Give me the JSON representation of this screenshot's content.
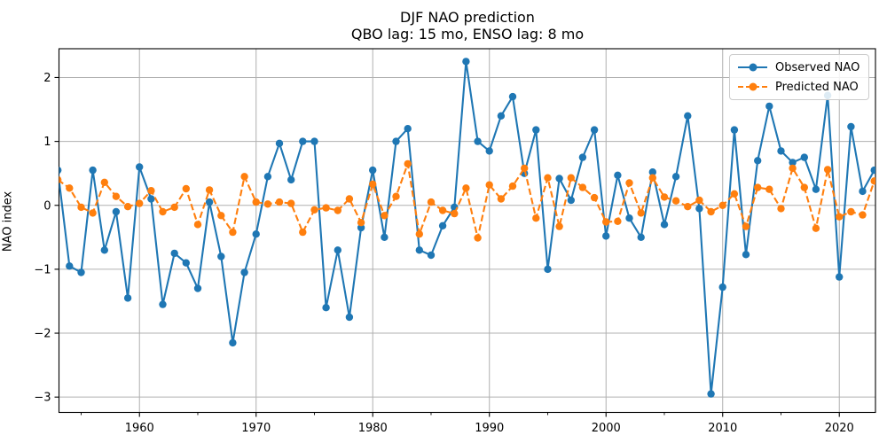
{
  "chart_data": {
    "type": "line",
    "title": "DJF NAO prediction",
    "subtitle": "QBO lag: 15 mo, ENSO lag: 8 mo",
    "xlabel": "",
    "ylabel": "NAO index",
    "x": [
      1953,
      1954,
      1955,
      1956,
      1957,
      1958,
      1959,
      1960,
      1961,
      1962,
      1963,
      1964,
      1965,
      1966,
      1967,
      1968,
      1969,
      1970,
      1971,
      1972,
      1973,
      1974,
      1975,
      1976,
      1977,
      1978,
      1979,
      1980,
      1981,
      1982,
      1983,
      1984,
      1985,
      1986,
      1987,
      1988,
      1989,
      1990,
      1991,
      1992,
      1993,
      1994,
      1995,
      1996,
      1997,
      1998,
      1999,
      2000,
      2001,
      2002,
      2003,
      2004,
      2005,
      2006,
      2007,
      2008,
      2009,
      2010,
      2011,
      2012,
      2013,
      2014,
      2015,
      2016,
      2017,
      2018,
      2019,
      2020,
      2021,
      2022,
      2023
    ],
    "series": [
      {
        "name": "Observed NAO",
        "color": "#1f77b4",
        "style": "solid",
        "marker": "circle",
        "values": [
          0.55,
          -0.95,
          -1.05,
          0.55,
          -0.7,
          -0.1,
          -1.45,
          0.6,
          0.1,
          -1.55,
          -0.75,
          -0.9,
          -1.3,
          0.05,
          -0.8,
          -2.15,
          -1.05,
          -0.45,
          0.45,
          0.97,
          0.4,
          1.0,
          1.0,
          -1.6,
          -0.7,
          -1.75,
          -0.35,
          0.55,
          -0.5,
          1.0,
          1.2,
          -0.7,
          -0.78,
          -0.32,
          -0.03,
          2.25,
          1.0,
          0.85,
          1.4,
          1.7,
          0.5,
          1.18,
          -1.0,
          0.42,
          0.08,
          0.75,
          1.18,
          -0.48,
          0.47,
          -0.2,
          -0.5,
          0.52,
          -0.3,
          0.45,
          1.4,
          -0.05,
          -2.95,
          -1.28,
          1.18,
          -0.77,
          0.7,
          1.55,
          0.85,
          0.67,
          0.75,
          0.25,
          1.72,
          -1.12,
          1.23,
          0.22,
          0.55
        ]
      },
      {
        "name": "Predicted NAO",
        "color": "#ff7f0e",
        "style": "dashed",
        "marker": "circle",
        "values": [
          0.4,
          0.27,
          -0.03,
          -0.12,
          0.36,
          0.14,
          -0.02,
          0.03,
          0.23,
          -0.1,
          -0.03,
          0.26,
          -0.3,
          0.24,
          -0.16,
          -0.42,
          0.45,
          0.05,
          0.02,
          0.05,
          0.03,
          -0.42,
          -0.07,
          -0.04,
          -0.08,
          0.1,
          -0.27,
          0.33,
          -0.16,
          0.14,
          0.65,
          -0.45,
          0.05,
          -0.08,
          -0.13,
          0.27,
          -0.51,
          0.32,
          0.1,
          0.3,
          0.58,
          -0.2,
          0.43,
          -0.33,
          0.43,
          0.28,
          0.12,
          -0.26,
          -0.25,
          0.35,
          -0.12,
          0.43,
          0.13,
          0.07,
          -0.02,
          0.08,
          -0.1,
          0.0,
          0.18,
          -0.33,
          0.28,
          0.25,
          -0.05,
          0.58,
          0.28,
          -0.36,
          0.56,
          -0.18,
          -0.1,
          -0.15,
          0.38
        ]
      }
    ],
    "xticks": [
      1960,
      1970,
      1980,
      1990,
      2000,
      2010,
      2020
    ],
    "xminorticks": [
      1955,
      1965,
      1975,
      1985,
      1995,
      2005,
      2015
    ],
    "yticks": [
      -3,
      -2,
      -1,
      0,
      1,
      2
    ],
    "xlim": [
      1953.1,
      2023.1
    ],
    "ylim": [
      -3.24,
      2.45
    ],
    "grid": true,
    "grid_color": "#b0b0b0",
    "legend_position": "upper right"
  }
}
